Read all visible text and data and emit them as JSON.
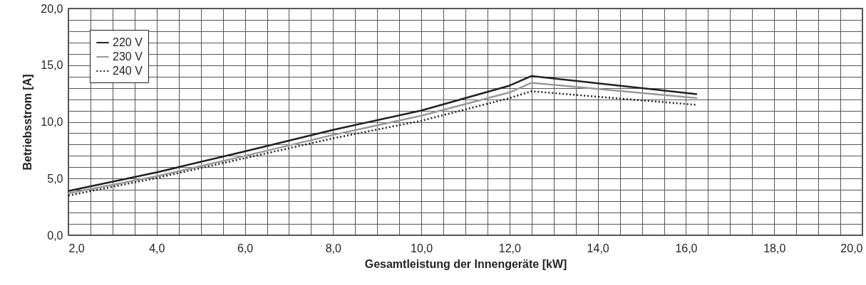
{
  "chart_data": {
    "type": "line",
    "xlabel": "Gesamtleistung der Innengeräte [kW]",
    "ylabel": "Betriebsstrom [A]",
    "x": [
      2,
      4,
      6,
      8,
      10,
      12,
      12.5,
      16.25
    ],
    "series": [
      {
        "name": "220 V",
        "color": "#231f20",
        "line_style": "solid",
        "values": [
          3.9,
          5.55,
          7.4,
          9.3,
          11.0,
          13.2,
          14.05,
          12.45
        ]
      },
      {
        "name": "230 V",
        "color": "#999999",
        "line_style": "solid",
        "values": [
          3.7,
          5.2,
          7.0,
          8.85,
          10.55,
          12.6,
          13.45,
          12.1
        ]
      },
      {
        "name": "240 V",
        "color": "#231f20",
        "line_style": "dotted",
        "values": [
          3.5,
          5.05,
          6.8,
          8.55,
          10.1,
          12.1,
          12.7,
          11.5
        ]
      }
    ],
    "xlim": [
      2,
      20
    ],
    "ylim": [
      0,
      20
    ],
    "xticks": [
      {
        "value": 2,
        "label": "2,0"
      },
      {
        "value": 2.5,
        "label": null
      },
      {
        "value": 3,
        "label": null
      },
      {
        "value": 3.5,
        "label": null
      },
      {
        "value": 4,
        "label": "4,0"
      },
      {
        "value": 4.5,
        "label": null
      },
      {
        "value": 5,
        "label": null
      },
      {
        "value": 5.5,
        "label": null
      },
      {
        "value": 6,
        "label": "6,0"
      },
      {
        "value": 6.5,
        "label": null
      },
      {
        "value": 7,
        "label": null
      },
      {
        "value": 7.5,
        "label": null
      },
      {
        "value": 8,
        "label": "8,0"
      },
      {
        "value": 8.5,
        "label": null
      },
      {
        "value": 9,
        "label": null
      },
      {
        "value": 9.5,
        "label": null
      },
      {
        "value": 10,
        "label": "10,0"
      },
      {
        "value": 10.5,
        "label": null
      },
      {
        "value": 11,
        "label": null
      },
      {
        "value": 11.5,
        "label": null
      },
      {
        "value": 12,
        "label": "12,0"
      },
      {
        "value": 12.5,
        "label": null
      },
      {
        "value": 13,
        "label": null
      },
      {
        "value": 13.5,
        "label": null
      },
      {
        "value": 14,
        "label": "14,0"
      },
      {
        "value": 14.5,
        "label": null
      },
      {
        "value": 15,
        "label": null
      },
      {
        "value": 15.5,
        "label": null
      },
      {
        "value": 16,
        "label": "16,0"
      },
      {
        "value": 16.5,
        "label": null
      },
      {
        "value": 17,
        "label": null
      },
      {
        "value": 17.5,
        "label": null
      },
      {
        "value": 18,
        "label": "18,0"
      },
      {
        "value": 18.5,
        "label": null
      },
      {
        "value": 19,
        "label": null
      },
      {
        "value": 19.5,
        "label": null
      },
      {
        "value": 20,
        "label": "20,0"
      }
    ],
    "yticks": [
      {
        "value": 0,
        "label": "0,0"
      },
      {
        "value": 1,
        "label": null
      },
      {
        "value": 2,
        "label": null
      },
      {
        "value": 3,
        "label": null
      },
      {
        "value": 4,
        "label": null
      },
      {
        "value": 5,
        "label": "5,0"
      },
      {
        "value": 6,
        "label": null
      },
      {
        "value": 7,
        "label": null
      },
      {
        "value": 8,
        "label": null
      },
      {
        "value": 9,
        "label": null
      },
      {
        "value": 10,
        "label": "10,0"
      },
      {
        "value": 11,
        "label": null
      },
      {
        "value": 12,
        "label": null
      },
      {
        "value": 13,
        "label": null
      },
      {
        "value": 14,
        "label": null
      },
      {
        "value": 15,
        "label": "15,0"
      },
      {
        "value": 16,
        "label": null
      },
      {
        "value": 17,
        "label": null
      },
      {
        "value": 18,
        "label": null
      },
      {
        "value": 19,
        "label": null
      },
      {
        "value": 20,
        "label": "20,0"
      }
    ],
    "grid": true,
    "legend": "top left"
  }
}
